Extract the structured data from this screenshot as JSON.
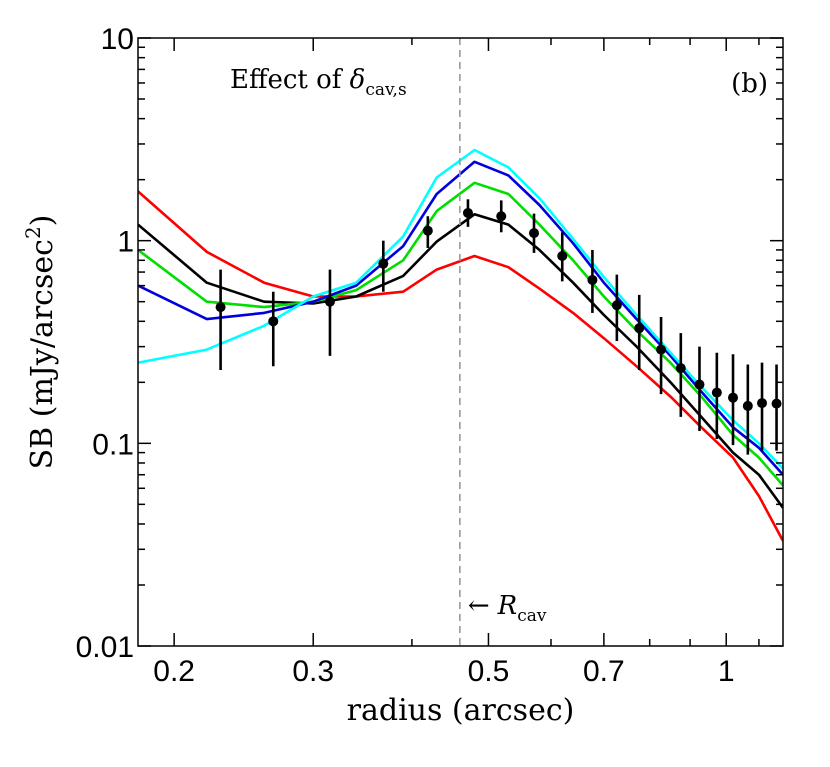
{
  "chart_data": {
    "type": "line",
    "title": "",
    "xlabel": "radius (arcsec)",
    "ylabel_main": "SB (mJy/arcsec",
    "ylabel_sup": "2",
    "ylabel_close": ")",
    "xscale": "log",
    "yscale": "log",
    "xlim": [
      0.18,
      1.18
    ],
    "ylim": [
      0.01,
      10
    ],
    "x_ticks": [
      0.2,
      0.3,
      0.5,
      0.7,
      1
    ],
    "x_tick_labels": [
      "0.2",
      "0.3",
      "0.5",
      "0.7",
      "1"
    ],
    "y_ticks": [
      0.01,
      0.1,
      1,
      10
    ],
    "y_tick_labels": [
      "0.01",
      "0.1",
      "1",
      "10"
    ],
    "panel_label": "(b)",
    "annotation": {
      "text": "Effect of ",
      "symbol": "δ",
      "subscript": "cav,s"
    },
    "reference_line": {
      "x": 0.46,
      "arrow": "←",
      "label": "R",
      "label_subscript": "cav"
    },
    "series": [
      {
        "color": "#ff0000",
        "x": [
          0.18,
          0.22,
          0.26,
          0.3,
          0.34,
          0.39,
          0.43,
          0.48,
          0.53,
          0.58,
          0.64,
          0.7,
          0.77,
          0.85,
          0.93,
          1.02,
          1.1,
          1.18
        ],
        "y": [
          1.75,
          0.88,
          0.62,
          0.53,
          0.53,
          0.56,
          0.72,
          0.84,
          0.74,
          0.58,
          0.44,
          0.33,
          0.24,
          0.17,
          0.12,
          0.085,
          0.055,
          0.033
        ]
      },
      {
        "color": "#000000",
        "x": [
          0.18,
          0.22,
          0.26,
          0.3,
          0.34,
          0.39,
          0.43,
          0.48,
          0.53,
          0.58,
          0.64,
          0.7,
          0.77,
          0.85,
          0.93,
          1.02,
          1.1,
          1.18
        ],
        "y": [
          1.2,
          0.62,
          0.5,
          0.49,
          0.53,
          0.67,
          0.99,
          1.35,
          1.2,
          0.9,
          0.62,
          0.43,
          0.3,
          0.2,
          0.135,
          0.09,
          0.07,
          0.048
        ]
      },
      {
        "color": "#00dd00",
        "x": [
          0.18,
          0.22,
          0.26,
          0.3,
          0.34,
          0.39,
          0.43,
          0.48,
          0.53,
          0.58,
          0.64,
          0.7,
          0.77,
          0.85,
          0.93,
          1.02,
          1.1,
          1.18
        ],
        "y": [
          0.9,
          0.5,
          0.47,
          0.5,
          0.57,
          0.8,
          1.4,
          1.93,
          1.7,
          1.2,
          0.8,
          0.53,
          0.36,
          0.25,
          0.17,
          0.11,
          0.085,
          0.062
        ]
      },
      {
        "color": "#0000dd",
        "x": [
          0.18,
          0.22,
          0.26,
          0.3,
          0.34,
          0.39,
          0.43,
          0.48,
          0.53,
          0.58,
          0.64,
          0.7,
          0.77,
          0.85,
          0.93,
          1.02,
          1.1,
          1.18
        ],
        "y": [
          0.6,
          0.41,
          0.44,
          0.5,
          0.6,
          0.94,
          1.7,
          2.45,
          2.1,
          1.5,
          0.97,
          0.62,
          0.41,
          0.27,
          0.18,
          0.12,
          0.095,
          0.07
        ]
      },
      {
        "color": "#00ffff",
        "x": [
          0.18,
          0.22,
          0.26,
          0.3,
          0.34,
          0.39,
          0.43,
          0.48,
          0.53,
          0.58,
          0.64,
          0.7,
          0.77,
          0.85,
          0.93,
          1.02,
          1.1,
          1.18
        ],
        "y": [
          0.25,
          0.29,
          0.38,
          0.53,
          0.62,
          1.05,
          2.05,
          2.8,
          2.3,
          1.62,
          1.02,
          0.66,
          0.43,
          0.28,
          0.19,
          0.13,
          0.1,
          0.075
        ]
      }
    ],
    "observed": {
      "x": [
        0.229,
        0.267,
        0.315,
        0.368,
        0.419,
        0.471,
        0.519,
        0.571,
        0.62,
        0.677,
        0.727,
        0.776,
        0.827,
        0.876,
        0.925,
        0.973,
        1.02,
        1.065,
        1.11,
        1.158
      ],
      "y": [
        0.47,
        0.4,
        0.5,
        0.77,
        1.12,
        1.37,
        1.32,
        1.09,
        0.84,
        0.64,
        0.48,
        0.37,
        0.29,
        0.235,
        0.195,
        0.178,
        0.168,
        0.153,
        0.158,
        0.157
      ],
      "err_low": [
        0.23,
        0.24,
        0.27,
        0.56,
        0.92,
        1.17,
        1.1,
        0.87,
        0.63,
        0.44,
        0.32,
        0.23,
        0.175,
        0.135,
        0.115,
        0.105,
        0.098,
        0.088,
        0.092,
        0.092
      ],
      "err_high": [
        0.72,
        0.56,
        0.72,
        1.0,
        1.32,
        1.6,
        1.58,
        1.36,
        1.1,
        0.9,
        0.68,
        0.54,
        0.42,
        0.35,
        0.3,
        0.28,
        0.275,
        0.245,
        0.25,
        0.245
      ]
    }
  }
}
